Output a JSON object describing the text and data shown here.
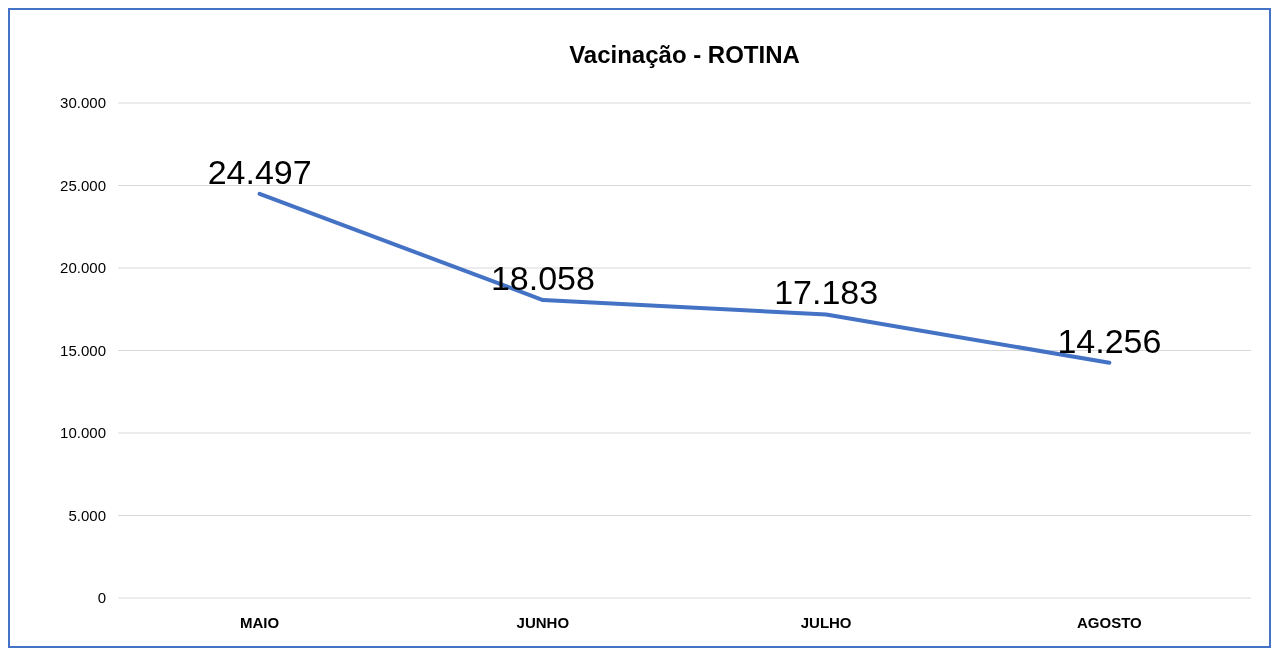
{
  "chart_data": {
    "type": "line",
    "title": "Vacinação - ROTINA",
    "categories": [
      "MAIO",
      "JUNHO",
      "JULHO",
      "AGOSTO"
    ],
    "series": [
      {
        "color": "#4472c4",
        "values": [
          24497,
          18058,
          17183,
          14256
        ]
      }
    ],
    "value_labels": [
      "24.497",
      "18.058",
      "17.183",
      "14.256"
    ],
    "ylim": [
      0,
      30000
    ],
    "yticks": [
      {
        "value": 0,
        "label": "0"
      },
      {
        "value": 5000,
        "label": "5.000"
      },
      {
        "value": 10000,
        "label": "10.000"
      },
      {
        "value": 15000,
        "label": "15.000"
      },
      {
        "value": 20000,
        "label": "20.000"
      },
      {
        "value": 25000,
        "label": "25.000"
      },
      {
        "value": 30000,
        "label": "30.000"
      }
    ],
    "grid": "y",
    "marker": "none",
    "line_style": "solid"
  }
}
